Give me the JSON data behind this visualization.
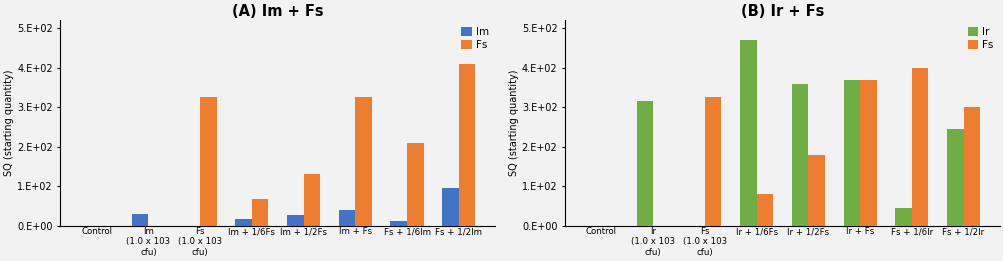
{
  "chart_A": {
    "title": "(A) Im + Fs",
    "categories": [
      "Control",
      "Im\n(1.0 x 103\ncfu)",
      "Fs\n(1.0 x 103\ncfu)",
      "Im + 1/6Fs",
      "Im + 1/2Fs",
      "Im + Fs",
      "Fs + 1/6Im",
      "Fs + 1/2Im"
    ],
    "primary": [
      0,
      30,
      0,
      18,
      28,
      40,
      12,
      95
    ],
    "secondary": [
      0,
      0,
      325,
      68,
      130,
      325,
      210,
      410
    ],
    "primary_color": "#4472C4",
    "secondary_color": "#ED7D31",
    "legend_labels": [
      "Im",
      "Fs"
    ],
    "ylabel": "SQ (starting quantity)",
    "ylim": [
      0,
      520
    ],
    "yticks": [
      0,
      100,
      200,
      300,
      400,
      500
    ],
    "yticklabels": [
      "0.E+00",
      "1.E+02",
      "2.E+02",
      "3.E+02",
      "4.E+02",
      "5.E+02"
    ]
  },
  "chart_B": {
    "title": "(B) Ir + Fs",
    "categories": [
      "Control",
      "Ir\n(1.0 x 103\ncfu)",
      "Fs\n(1.0 x 103\ncfu)",
      "Ir + 1/6Fs",
      "Ir + 1/2Fs",
      "Ir + Fs",
      "Fs + 1/6Ir",
      "Fs + 1/2Ir"
    ],
    "primary": [
      0,
      315,
      0,
      470,
      360,
      370,
      45,
      245
    ],
    "secondary": [
      0,
      0,
      325,
      80,
      180,
      368,
      400,
      300
    ],
    "primary_color": "#70AD47",
    "secondary_color": "#ED7D31",
    "legend_labels": [
      "Ir",
      "Fs"
    ],
    "ylabel": "SQ (starting quantity)",
    "ylim": [
      0,
      520
    ],
    "yticks": [
      0,
      100,
      200,
      300,
      400,
      500
    ],
    "yticklabels": [
      "0.E+00",
      "1.E+02",
      "2.E+02",
      "3.E+02",
      "4.E+02",
      "5.E+02"
    ]
  },
  "bar_width": 0.32,
  "figsize": [
    10.04,
    2.61
  ],
  "dpi": 100,
  "bg_color": "#f2f2f2"
}
